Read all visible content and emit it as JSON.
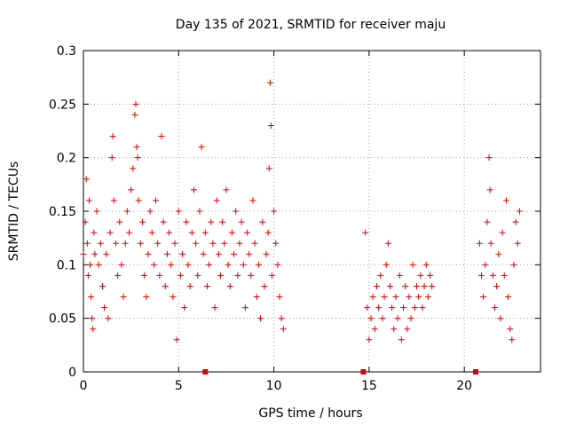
{
  "chart_data": {
    "type": "scatter",
    "title": "Day 135 of 2021, SRMTID for receiver maju",
    "xlabel": "GPS time / hours",
    "ylabel": "SRMTID / TECUs",
    "xlim": [
      0,
      24
    ],
    "ylim": [
      0,
      0.3
    ],
    "grid": true,
    "marker": "plus",
    "color": "#dd0000",
    "x_ticks": [
      0,
      5,
      10,
      15,
      20
    ],
    "x_tick_labels": [
      "0",
      "5",
      "10",
      "15",
      "20"
    ],
    "y_ticks": [
      0,
      0.05,
      0.1,
      0.15,
      0.2,
      0.25,
      0.3
    ],
    "y_tick_labels": [
      "0",
      "0.05",
      "0.1",
      "0.15",
      "0.2",
      "0.25",
      "0.3"
    ],
    "series": [
      {
        "name": "SRMTID",
        "points": [
          [
            0.0,
            0.11
          ],
          [
            0.1,
            0.14
          ],
          [
            0.15,
            0.18
          ],
          [
            0.2,
            0.12
          ],
          [
            0.25,
            0.09
          ],
          [
            0.3,
            0.16
          ],
          [
            0.35,
            0.1
          ],
          [
            0.4,
            0.07
          ],
          [
            0.45,
            0.05
          ],
          [
            0.5,
            0.04
          ],
          [
            0.55,
            0.13
          ],
          [
            0.6,
            0.11
          ],
          [
            0.7,
            0.15
          ],
          [
            0.8,
            0.1
          ],
          [
            0.9,
            0.12
          ],
          [
            1.0,
            0.08
          ],
          [
            1.1,
            0.06
          ],
          [
            1.2,
            0.11
          ],
          [
            1.3,
            0.05
          ],
          [
            1.4,
            0.13
          ],
          [
            1.5,
            0.2
          ],
          [
            1.55,
            0.22
          ],
          [
            1.6,
            0.16
          ],
          [
            1.7,
            0.12
          ],
          [
            1.8,
            0.09
          ],
          [
            1.9,
            0.14
          ],
          [
            2.0,
            0.1
          ],
          [
            2.1,
            0.07
          ],
          [
            2.2,
            0.12
          ],
          [
            2.3,
            0.15
          ],
          [
            2.4,
            0.13
          ],
          [
            2.5,
            0.17
          ],
          [
            2.6,
            0.19
          ],
          [
            2.7,
            0.24
          ],
          [
            2.75,
            0.25
          ],
          [
            2.8,
            0.21
          ],
          [
            2.85,
            0.2
          ],
          [
            2.9,
            0.16
          ],
          [
            3.0,
            0.12
          ],
          [
            3.1,
            0.14
          ],
          [
            3.2,
            0.09
          ],
          [
            3.3,
            0.07
          ],
          [
            3.4,
            0.11
          ],
          [
            3.5,
            0.15
          ],
          [
            3.6,
            0.13
          ],
          [
            3.7,
            0.1
          ],
          [
            3.8,
            0.16
          ],
          [
            3.9,
            0.12
          ],
          [
            4.0,
            0.09
          ],
          [
            4.1,
            0.22
          ],
          [
            4.2,
            0.14
          ],
          [
            4.3,
            0.08
          ],
          [
            4.4,
            0.11
          ],
          [
            4.5,
            0.13
          ],
          [
            4.6,
            0.1
          ],
          [
            4.7,
            0.07
          ],
          [
            4.8,
            0.12
          ],
          [
            4.9,
            0.03
          ],
          [
            5.0,
            0.15
          ],
          [
            5.1,
            0.09
          ],
          [
            5.2,
            0.11
          ],
          [
            5.3,
            0.06
          ],
          [
            5.4,
            0.14
          ],
          [
            5.5,
            0.1
          ],
          [
            5.6,
            0.08
          ],
          [
            5.7,
            0.13
          ],
          [
            5.8,
            0.17
          ],
          [
            5.9,
            0.12
          ],
          [
            6.0,
            0.09
          ],
          [
            6.1,
            0.15
          ],
          [
            6.2,
            0.21
          ],
          [
            6.3,
            0.11
          ],
          [
            6.4,
            0.13
          ],
          [
            6.5,
            0.08
          ],
          [
            6.6,
            0.1
          ],
          [
            6.7,
            0.14
          ],
          [
            6.8,
            0.12
          ],
          [
            6.9,
            0.06
          ],
          [
            7.0,
            0.16
          ],
          [
            7.1,
            0.11
          ],
          [
            7.2,
            0.09
          ],
          [
            7.3,
            0.14
          ],
          [
            7.4,
            0.12
          ],
          [
            7.5,
            0.17
          ],
          [
            7.6,
            0.1
          ],
          [
            7.7,
            0.08
          ],
          [
            7.8,
            0.13
          ],
          [
            7.9,
            0.11
          ],
          [
            8.0,
            0.15
          ],
          [
            8.1,
            0.09
          ],
          [
            8.2,
            0.12
          ],
          [
            8.3,
            0.14
          ],
          [
            8.4,
            0.1
          ],
          [
            8.5,
            0.06
          ],
          [
            8.6,
            0.13
          ],
          [
            8.7,
            0.11
          ],
          [
            8.8,
            0.09
          ],
          [
            8.9,
            0.16
          ],
          [
            9.0,
            0.12
          ],
          [
            9.1,
            0.07
          ],
          [
            9.2,
            0.1
          ],
          [
            9.3,
            0.05
          ],
          [
            9.4,
            0.14
          ],
          [
            9.5,
            0.08
          ],
          [
            9.6,
            0.11
          ],
          [
            9.7,
            0.13
          ],
          [
            9.75,
            0.19
          ],
          [
            9.8,
            0.27
          ],
          [
            9.85,
            0.23
          ],
          [
            9.9,
            0.09
          ],
          [
            10.0,
            0.15
          ],
          [
            10.1,
            0.12
          ],
          [
            10.2,
            0.1
          ],
          [
            10.3,
            0.07
          ],
          [
            10.4,
            0.05
          ],
          [
            10.5,
            0.04
          ],
          [
            14.8,
            0.13
          ],
          [
            14.9,
            0.06
          ],
          [
            15.0,
            0.03
          ],
          [
            15.1,
            0.05
          ],
          [
            15.2,
            0.07
          ],
          [
            15.3,
            0.04
          ],
          [
            15.4,
            0.08
          ],
          [
            15.5,
            0.06
          ],
          [
            15.6,
            0.09
          ],
          [
            15.7,
            0.05
          ],
          [
            15.8,
            0.07
          ],
          [
            15.9,
            0.1
          ],
          [
            16.0,
            0.12
          ],
          [
            16.1,
            0.08
          ],
          [
            16.2,
            0.06
          ],
          [
            16.3,
            0.04
          ],
          [
            16.4,
            0.07
          ],
          [
            16.5,
            0.05
          ],
          [
            16.6,
            0.09
          ],
          [
            16.7,
            0.03
          ],
          [
            16.8,
            0.06
          ],
          [
            16.9,
            0.08
          ],
          [
            17.0,
            0.04
          ],
          [
            17.1,
            0.07
          ],
          [
            17.2,
            0.05
          ],
          [
            17.3,
            0.1
          ],
          [
            17.4,
            0.06
          ],
          [
            17.5,
            0.08
          ],
          [
            17.6,
            0.07
          ],
          [
            17.7,
            0.09
          ],
          [
            17.8,
            0.06
          ],
          [
            17.9,
            0.08
          ],
          [
            18.0,
            0.1
          ],
          [
            18.1,
            0.07
          ],
          [
            18.2,
            0.09
          ],
          [
            18.3,
            0.08
          ],
          [
            20.8,
            0.12
          ],
          [
            20.9,
            0.09
          ],
          [
            21.0,
            0.07
          ],
          [
            21.1,
            0.1
          ],
          [
            21.2,
            0.14
          ],
          [
            21.3,
            0.2
          ],
          [
            21.35,
            0.17
          ],
          [
            21.4,
            0.12
          ],
          [
            21.5,
            0.09
          ],
          [
            21.6,
            0.06
          ],
          [
            21.7,
            0.08
          ],
          [
            21.8,
            0.11
          ],
          [
            21.9,
            0.05
          ],
          [
            22.0,
            0.13
          ],
          [
            22.1,
            0.09
          ],
          [
            22.2,
            0.16
          ],
          [
            22.3,
            0.07
          ],
          [
            22.4,
            0.04
          ],
          [
            22.5,
            0.03
          ],
          [
            22.6,
            0.1
          ],
          [
            22.7,
            0.14
          ],
          [
            22.8,
            0.12
          ],
          [
            22.9,
            0.15
          ]
        ]
      }
    ],
    "data_gaps_x": [
      6.4,
      14.7,
      20.6
    ]
  }
}
